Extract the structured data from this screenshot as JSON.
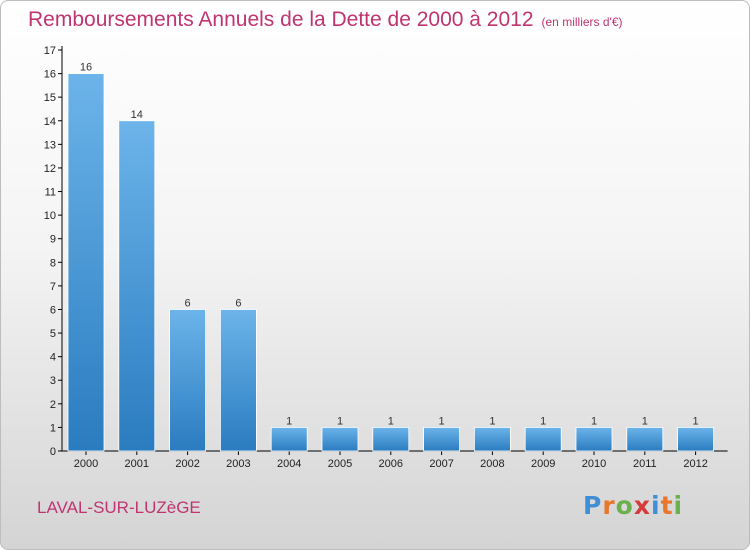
{
  "title": "Remboursements Annuels de la Dette de 2000 à 2012",
  "unit_label": "(en milliers d'€)",
  "town": "LAVAL-SUR-LUZèGE",
  "logo": {
    "text": "Proxiti",
    "letter_colors": [
      "#3f8fd6",
      "#e8762c",
      "#6ab04c",
      "#d63a3a",
      "#3f8fd6",
      "#e8762c",
      "#6ab04c"
    ]
  },
  "colors": {
    "bar_light": "#6cb4ea",
    "bar_dark": "#2a7cc0",
    "axis": "#000000",
    "text_accent": "#c03470"
  },
  "chart_data": {
    "type": "bar",
    "categories": [
      "2000",
      "2001",
      "2002",
      "2003",
      "2004",
      "2005",
      "2006",
      "2007",
      "2008",
      "2009",
      "2010",
      "2011",
      "2012"
    ],
    "values": [
      16,
      14,
      6,
      6,
      1,
      1,
      1,
      1,
      1,
      1,
      1,
      1,
      1
    ],
    "title": "Remboursements Annuels de la Dette de 2000 à 2012",
    "ylabel": "",
    "xlabel": "",
    "ylim": [
      0,
      17
    ],
    "yticks": [
      "0",
      "1",
      "2",
      "3",
      "4",
      "5",
      "6",
      "7",
      "8",
      "9",
      "10",
      "11",
      "12",
      "13",
      "14",
      "15",
      "16",
      "17"
    ],
    "data_labels": [
      "16",
      "14",
      "6",
      "6",
      "1",
      "1",
      "1",
      "1",
      "1",
      "1",
      "1",
      "1",
      "1"
    ],
    "grid": false,
    "legend": "none"
  }
}
